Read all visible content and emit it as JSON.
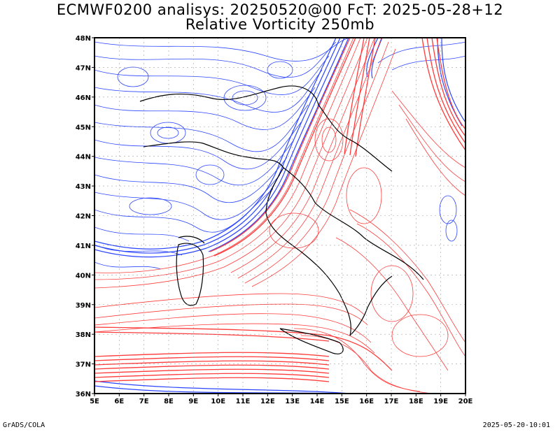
{
  "title": {
    "line1": "ECMWF0200 analisys: 20250520@00 FcT: 2025-05-28+12",
    "line2": "Relative Vorticity 250mb"
  },
  "map": {
    "lon_range": [
      5,
      20
    ],
    "lat_range": [
      36,
      48
    ],
    "lon_labels": [
      "5E",
      "6E",
      "7E",
      "8E",
      "9E",
      "10E",
      "11E",
      "12E",
      "13E",
      "14E",
      "15E",
      "16E",
      "17E",
      "18E",
      "19E",
      "20E"
    ],
    "lat_labels": [
      "36N",
      "37N",
      "38N",
      "39N",
      "40N",
      "41N",
      "42N",
      "43N",
      "44N",
      "45N",
      "46N",
      "47N",
      "48N"
    ],
    "colors": {
      "negative": "#2b45ff",
      "positive": "#ff3b3b",
      "border": "#000000",
      "grid": "#a0a0a0"
    }
  },
  "footer": {
    "left": "GrADS/COLA",
    "right": "2025-05-20-10:01"
  }
}
